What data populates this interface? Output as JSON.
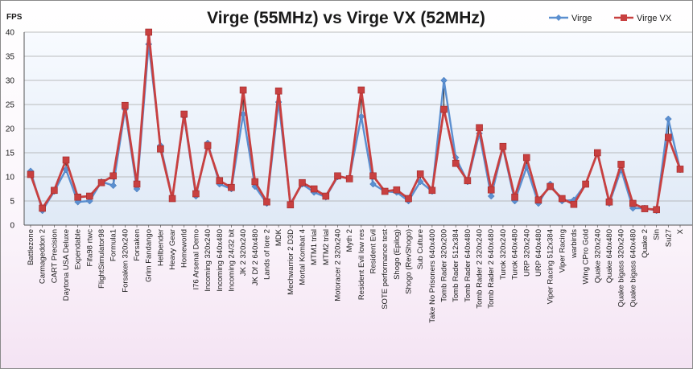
{
  "chart_data": {
    "type": "line",
    "title": "Virge (55MHz) vs Virge VX (52MHz)",
    "ylabel": "FPS",
    "xlabel": "",
    "ylim": [
      0,
      40
    ],
    "yticks": [
      0,
      5,
      10,
      15,
      20,
      25,
      30,
      35,
      40
    ],
    "grid": true,
    "legend_position": "top-right",
    "categories": [
      "Battlezone",
      "Carmageddon 2",
      "CART Precision",
      "Daytona USA Deluxe",
      "Expendable",
      "Fifa98 rtwc",
      "FlightSimulator98",
      "Formula1",
      "Forsaken 320x240",
      "Forsaken",
      "Grim Fandango",
      "Hellbender",
      "Heavy Gear",
      "Homeworld",
      "I76 Arsenal Demo",
      "Incoming 320x240",
      "Incoming 640x480",
      "Incoming 24/32 bit",
      "JK 2 320x240",
      "JK Df 2 640x480",
      "Lands of lore 2",
      "MDK",
      "Mechwarrior 2 D3D",
      "Mortal Kombat 4",
      "MTM1 trial",
      "MTM2 trial",
      "Motoracer 2 320x240",
      "Myth 2",
      "Resident Evil low res",
      "Resident Evil",
      "SOTE performance test",
      "Shogo (Epilog)",
      "Shogo (RevShogo)",
      "Sub Culture",
      "Take No Prisoners 640x400",
      "Tomb Rader 320x200",
      "Tomb Rader 512x384",
      "Tomb Rader 640x480",
      "Tomb Rader 2 320x240",
      "Tomb Rader 2 640x480",
      "Turok 320x240",
      "Turok 640x480",
      "URP 320x240",
      "URP 640x480",
      "Viper Racing 512x384",
      "Viper Racing",
      "warbirds",
      "Wing CPro Gold",
      "Quake 320x240",
      "Quake 640x480",
      "Quake bigass 320x240",
      "Quake bigass 640x480",
      "Quake 2",
      "Sin",
      "Su27",
      "X"
    ],
    "series": [
      {
        "name": "Virge",
        "color": "#5b8fd0",
        "marker": "diamond",
        "values": [
          11.2,
          3.0,
          7.0,
          11.5,
          4.8,
          5.0,
          9.0,
          8.2,
          24.0,
          7.5,
          37.5,
          16.5,
          5.6,
          22.5,
          6.0,
          17.0,
          8.5,
          7.5,
          23.0,
          8.0,
          4.5,
          25.5,
          4.5,
          8.5,
          6.8,
          5.8,
          10.0,
          9.8,
          22.5,
          8.5,
          7.0,
          6.8,
          5.0,
          9.0,
          7.0,
          30.0,
          14.0,
          9.0,
          19.0,
          6.0,
          16.0,
          5.0,
          12.0,
          4.5,
          8.5,
          5.0,
          5.2,
          8.5,
          15.0,
          4.5,
          11.5,
          3.5,
          3.5,
          3.0,
          22.0,
          11.5
        ]
      },
      {
        "name": "Virge VX",
        "color": "#c84040",
        "marker": "square",
        "values": [
          10.5,
          3.5,
          7.2,
          13.5,
          5.8,
          6.0,
          8.8,
          10.2,
          24.8,
          8.5,
          40.0,
          15.8,
          5.5,
          23.0,
          6.5,
          16.5,
          9.2,
          7.8,
          28.0,
          9.0,
          4.8,
          27.8,
          4.2,
          8.8,
          7.5,
          6.0,
          10.2,
          9.6,
          28.0,
          10.2,
          7.0,
          7.3,
          5.5,
          10.6,
          7.2,
          24.0,
          12.8,
          9.2,
          20.2,
          7.3,
          16.3,
          5.8,
          14.0,
          5.2,
          8.0,
          5.5,
          4.3,
          8.5,
          15.0,
          4.8,
          12.6,
          4.5,
          3.4,
          3.2,
          18.2,
          11.6
        ]
      }
    ]
  }
}
